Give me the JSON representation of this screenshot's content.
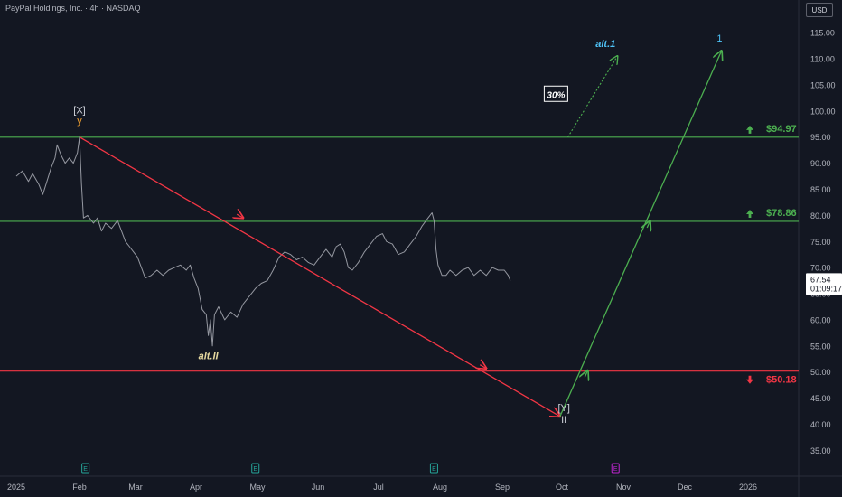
{
  "header": {
    "title": "PayPal Holdings, Inc. · 4h · NASDAQ",
    "currency": "USD"
  },
  "chart_data": {
    "type": "line",
    "x_ticks": [
      "2025",
      "Feb",
      "Mar",
      "Apr",
      "May",
      "Jun",
      "Jul",
      "Aug",
      "Sep",
      "Oct",
      "Nov",
      "Dec",
      "2026"
    ],
    "x_tick_dates": [
      "2025-01-01",
      "2025-02-01",
      "2025-03-01",
      "2025-04-01",
      "2025-05-01",
      "2025-06-01",
      "2025-07-01",
      "2025-08-01",
      "2025-09-01",
      "2025-10-01",
      "2025-11-01",
      "2025-12-01",
      "2026-01-01"
    ],
    "y_ticks": [
      "115.00",
      "110.00",
      "105.00",
      "100.00",
      "95.00",
      "90.00",
      "85.00",
      "80.00",
      "75.00",
      "70.00",
      "65.00",
      "60.00",
      "55.00",
      "50.00",
      "45.00",
      "40.00",
      "35.00"
    ],
    "ylim": [
      33,
      117
    ],
    "price_series": {
      "color": "#9598a1",
      "points": [
        [
          "2025-01-01",
          87.5
        ],
        [
          "2025-01-04",
          88.5
        ],
        [
          "2025-01-07",
          86.5
        ],
        [
          "2025-01-09",
          88
        ],
        [
          "2025-01-12",
          86
        ],
        [
          "2025-01-14",
          84
        ],
        [
          "2025-01-16",
          86.5
        ],
        [
          "2025-01-18",
          89
        ],
        [
          "2025-01-20",
          91
        ],
        [
          "2025-01-21",
          93.5
        ],
        [
          "2025-01-23",
          91.5
        ],
        [
          "2025-01-25",
          90
        ],
        [
          "2025-01-27",
          91
        ],
        [
          "2025-01-29",
          90
        ],
        [
          "2025-01-31",
          92
        ],
        [
          "2025-02-01",
          95
        ],
        [
          "2025-02-02",
          86
        ],
        [
          "2025-02-03",
          79.5
        ],
        [
          "2025-02-05",
          80
        ],
        [
          "2025-02-08",
          78.5
        ],
        [
          "2025-02-10",
          79.5
        ],
        [
          "2025-02-12",
          77
        ],
        [
          "2025-02-14",
          78.5
        ],
        [
          "2025-02-17",
          77.5
        ],
        [
          "2025-02-20",
          79
        ],
        [
          "2025-02-22",
          77
        ],
        [
          "2025-02-24",
          75
        ],
        [
          "2025-02-26",
          74
        ],
        [
          "2025-02-28",
          73
        ],
        [
          "2025-03-02",
          72
        ],
        [
          "2025-03-04",
          70
        ],
        [
          "2025-03-06",
          68
        ],
        [
          "2025-03-09",
          68.5
        ],
        [
          "2025-03-12",
          69.5
        ],
        [
          "2025-03-15",
          68.5
        ],
        [
          "2025-03-18",
          69.5
        ],
        [
          "2025-03-21",
          70
        ],
        [
          "2025-03-24",
          70.5
        ],
        [
          "2025-03-27",
          69.5
        ],
        [
          "2025-03-29",
          70.5
        ],
        [
          "2025-03-31",
          68
        ],
        [
          "2025-04-02",
          66
        ],
        [
          "2025-04-04",
          62
        ],
        [
          "2025-04-06",
          61
        ],
        [
          "2025-04-07",
          57
        ],
        [
          "2025-04-08",
          60
        ],
        [
          "2025-04-09",
          55
        ],
        [
          "2025-04-10",
          61
        ],
        [
          "2025-04-12",
          62.5
        ],
        [
          "2025-04-15",
          60
        ],
        [
          "2025-04-18",
          61.5
        ],
        [
          "2025-04-21",
          60.5
        ],
        [
          "2025-04-24",
          63
        ],
        [
          "2025-04-27",
          64.5
        ],
        [
          "2025-04-30",
          66
        ],
        [
          "2025-05-03",
          67
        ],
        [
          "2025-05-06",
          67.5
        ],
        [
          "2025-05-09",
          69.5
        ],
        [
          "2025-05-12",
          72
        ],
        [
          "2025-05-15",
          73
        ],
        [
          "2025-05-18",
          72.5
        ],
        [
          "2025-05-21",
          71.5
        ],
        [
          "2025-05-24",
          72
        ],
        [
          "2025-05-27",
          71
        ],
        [
          "2025-05-30",
          70.5
        ],
        [
          "2025-06-02",
          72
        ],
        [
          "2025-06-05",
          73.5
        ],
        [
          "2025-06-08",
          72
        ],
        [
          "2025-06-10",
          74
        ],
        [
          "2025-06-12",
          74.5
        ],
        [
          "2025-06-14",
          73
        ],
        [
          "2025-06-16",
          70
        ],
        [
          "2025-06-18",
          69.5
        ],
        [
          "2025-06-21",
          71
        ],
        [
          "2025-06-24",
          73
        ],
        [
          "2025-06-27",
          74.5
        ],
        [
          "2025-06-30",
          76
        ],
        [
          "2025-07-03",
          76.5
        ],
        [
          "2025-07-05",
          75
        ],
        [
          "2025-07-08",
          74.5
        ],
        [
          "2025-07-11",
          72.5
        ],
        [
          "2025-07-14",
          73
        ],
        [
          "2025-07-17",
          74.5
        ],
        [
          "2025-07-20",
          76
        ],
        [
          "2025-07-23",
          78
        ],
        [
          "2025-07-26",
          79.5
        ],
        [
          "2025-07-28",
          80.5
        ],
        [
          "2025-07-29",
          79
        ],
        [
          "2025-07-30",
          73.5
        ],
        [
          "2025-07-31",
          70.5
        ],
        [
          "2025-08-02",
          68.5
        ],
        [
          "2025-08-04",
          68.5
        ],
        [
          "2025-08-06",
          69.5
        ],
        [
          "2025-08-09",
          68.5
        ],
        [
          "2025-08-12",
          69.5
        ],
        [
          "2025-08-15",
          70
        ],
        [
          "2025-08-18",
          68.5
        ],
        [
          "2025-08-21",
          69.5
        ],
        [
          "2025-08-24",
          68.5
        ],
        [
          "2025-08-27",
          70
        ],
        [
          "2025-08-30",
          69.5
        ],
        [
          "2025-09-02",
          69.5
        ],
        [
          "2025-09-04",
          68.5
        ],
        [
          "2025-09-05",
          67.5
        ]
      ]
    },
    "horizontal_levels": [
      {
        "price": 94.97,
        "label": "$94.97",
        "color": "#4caf50",
        "arrow": "up"
      },
      {
        "price": 78.86,
        "label": "$78.86",
        "color": "#4caf50",
        "arrow": "up"
      },
      {
        "price": 50.18,
        "label": "$50.18",
        "color": "#f23645",
        "arrow": "down"
      }
    ],
    "projection_lines": [
      {
        "from": [
          "2025-02-01",
          95
        ],
        "to": [
          "2025-09-30",
          41.5
        ],
        "color": "#f23645",
        "arrow_at": [
          "2025-04-24",
          79.5
        ],
        "arrow_mid": [
          "2025-08-24",
          50.7
        ]
      },
      {
        "from": [
          "2025-09-30",
          41.5
        ],
        "to": [
          "2025-12-19",
          111.5
        ],
        "color": "#4caf50",
        "arrow_at": [
          "2025-10-14",
          50.3
        ],
        "arrow_mid": [
          "2025-11-14",
          78.9
        ]
      }
    ],
    "alt_projection": {
      "from": [
        "2025-10-04",
        95
      ],
      "to": [
        "2025-10-29",
        110.5
      ],
      "color": "#4caf50"
    },
    "wave_labels": [
      {
        "text": "[X]",
        "date": "2025-02-01",
        "price": 99.5,
        "color": "#d1d4dc"
      },
      {
        "text": "y",
        "date": "2025-02-01",
        "price": 97.5,
        "color": "#f0a030"
      },
      {
        "text": "alt.II",
        "date": "2025-04-07",
        "price": 52.5,
        "color": "#e6d9a0"
      },
      {
        "text": "[Y]",
        "date": "2025-10-02",
        "price": 42.5,
        "color": "#d1d4dc"
      },
      {
        "text": "II",
        "date": "2025-10-02",
        "price": 40.3,
        "color": "#d1d4dc"
      },
      {
        "text": "alt.1",
        "date": "2025-10-23",
        "price": 112.2,
        "color": "#4fc3f7"
      },
      {
        "text": "1",
        "date": "2025-12-18",
        "price": 113.3,
        "color": "#4fc3f7"
      }
    ],
    "probability_box": {
      "text": "30%",
      "date": "2025-09-28",
      "price": 103.2
    },
    "current_price": {
      "value": "67.54",
      "countdown": "01:09:17",
      "price": 67.54
    },
    "event_markers": [
      {
        "label": "E",
        "date": "2025-02-04",
        "color": "#26a69a"
      },
      {
        "label": "E",
        "date": "2025-04-30",
        "color": "#26a69a"
      },
      {
        "label": "E",
        "date": "2025-07-29",
        "color": "#26a69a"
      },
      {
        "label": "E",
        "date": "2025-10-28",
        "color": "#c026d3"
      }
    ],
    "grid": false
  }
}
